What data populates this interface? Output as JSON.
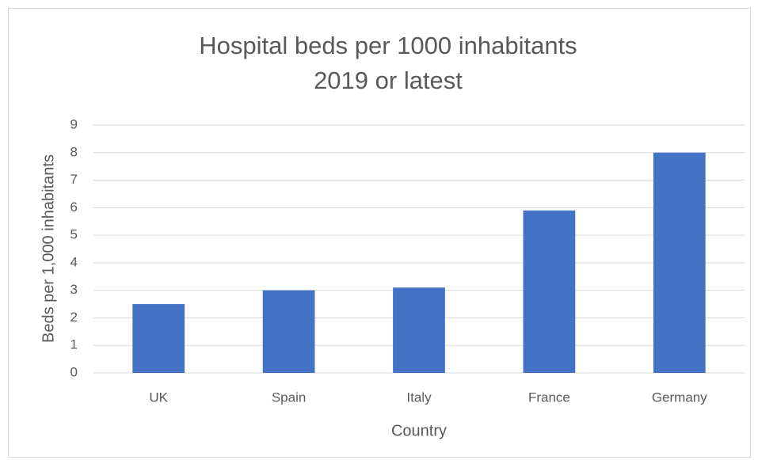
{
  "chart_data": {
    "type": "bar",
    "title": "Hospital beds per 1000 inhabitants",
    "subtitle": "2019 or latest",
    "x_label": "Country",
    "y_label": "Beds per 1,000 inhabitants",
    "categories": [
      "UK",
      "Spain",
      "Italy",
      "France",
      "Germany"
    ],
    "values": [
      2.5,
      3.0,
      3.1,
      5.9,
      8.0
    ],
    "color": "#4472c4",
    "ylim": [
      0,
      9
    ],
    "yticks": [
      0,
      1,
      2,
      3,
      4,
      5,
      6,
      7,
      8,
      9
    ],
    "grid": true
  }
}
